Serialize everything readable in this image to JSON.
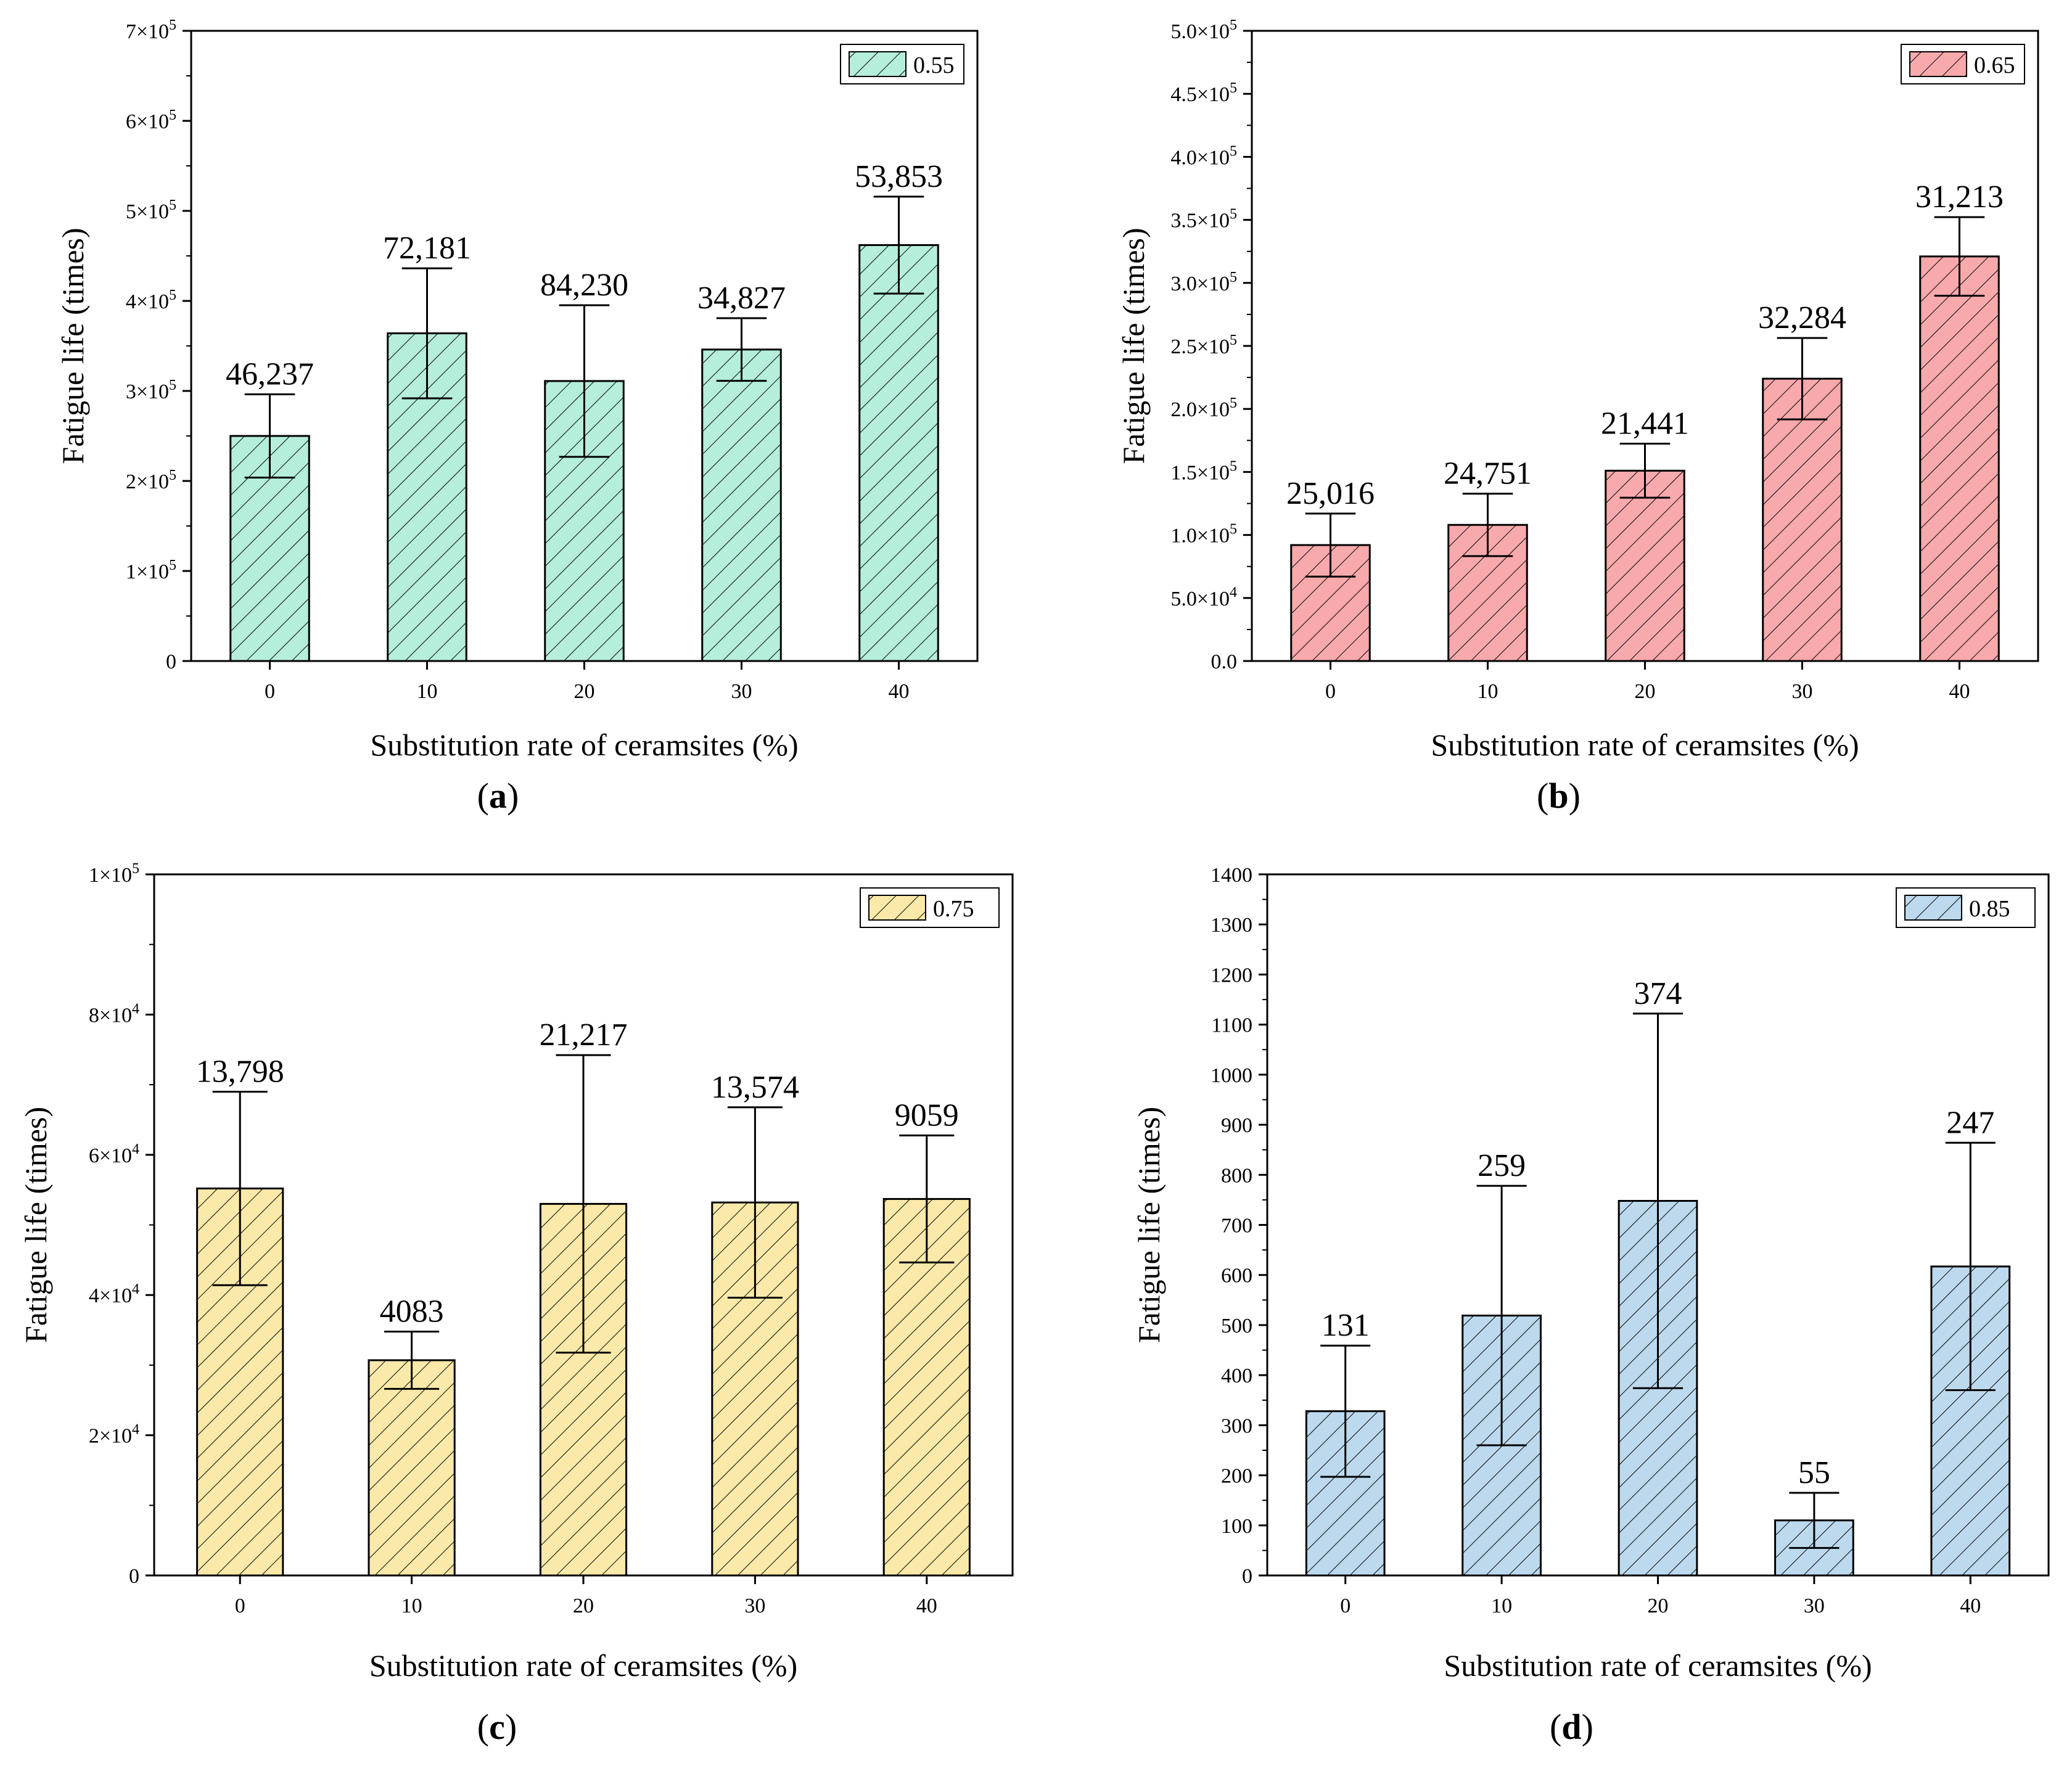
{
  "chart_data": [
    {
      "id": "a",
      "type": "bar",
      "caption": "(a)",
      "legend": "0.55",
      "color": "#b5eedb",
      "categories": [
        "0",
        "10",
        "20",
        "30",
        "40"
      ],
      "values": [
        250000,
        364000,
        311000,
        346000,
        462000
      ],
      "errors": [
        46237,
        72181,
        84230,
        34827,
        53853
      ],
      "error_labels": [
        "46,237",
        "72,181",
        "84,230",
        "34,827",
        "53,853"
      ],
      "xlabel": "Substitution rate of ceramsites (%)",
      "ylabel": "Fatigue life (times)",
      "ylim": [
        0,
        700000
      ],
      "y_ticks": [
        {
          "value": 0,
          "mant": "0",
          "exp": ""
        },
        {
          "value": 100000,
          "mant": "1×10",
          "exp": "5"
        },
        {
          "value": 200000,
          "mant": "2×10",
          "exp": "5"
        },
        {
          "value": 300000,
          "mant": "3×10",
          "exp": "5"
        },
        {
          "value": 400000,
          "mant": "4×10",
          "exp": "5"
        },
        {
          "value": 500000,
          "mant": "5×10",
          "exp": "5"
        },
        {
          "value": 600000,
          "mant": "6×10",
          "exp": "5"
        },
        {
          "value": 700000,
          "mant": "7×10",
          "exp": "5"
        }
      ]
    },
    {
      "id": "b",
      "type": "bar",
      "caption": "(b)",
      "legend": "0.65",
      "color": "#f7a9ab",
      "categories": [
        "0",
        "10",
        "20",
        "30",
        "40"
      ],
      "values": [
        92000,
        108000,
        151000,
        224000,
        321000
      ],
      "errors": [
        25016,
        24751,
        21441,
        32284,
        31213
      ],
      "error_labels": [
        "25,016",
        "24,751",
        "21,441",
        "32,284",
        "31,213"
      ],
      "xlabel": "Substitution rate of ceramsites (%)",
      "ylabel": "Fatigue life (times)",
      "ylim": [
        0,
        500000
      ],
      "y_ticks": [
        {
          "value": 0,
          "mant": "0.0",
          "exp": ""
        },
        {
          "value": 50000,
          "mant": "5.0×10",
          "exp": "4"
        },
        {
          "value": 100000,
          "mant": "1.0×10",
          "exp": "5"
        },
        {
          "value": 150000,
          "mant": "1.5×10",
          "exp": "5"
        },
        {
          "value": 200000,
          "mant": "2.0×10",
          "exp": "5"
        },
        {
          "value": 250000,
          "mant": "2.5×10",
          "exp": "5"
        },
        {
          "value": 300000,
          "mant": "3.0×10",
          "exp": "5"
        },
        {
          "value": 350000,
          "mant": "3.5×10",
          "exp": "5"
        },
        {
          "value": 400000,
          "mant": "4.0×10",
          "exp": "5"
        },
        {
          "value": 450000,
          "mant": "4.5×10",
          "exp": "5"
        },
        {
          "value": 500000,
          "mant": "5.0×10",
          "exp": "5"
        }
      ]
    },
    {
      "id": "c",
      "type": "bar",
      "caption": "(c)",
      "legend": "0.75",
      "color": "#fbe9a9",
      "categories": [
        "0",
        "10",
        "20",
        "30",
        "40"
      ],
      "values": [
        55200,
        30700,
        53000,
        53200,
        53700
      ],
      "errors": [
        13798,
        4083,
        21217,
        13574,
        9059
      ],
      "error_labels": [
        "13,798",
        "4083",
        "21,217",
        "13,574",
        "9059"
      ],
      "xlabel": "Substitution rate of ceramsites (%)",
      "ylabel": "Fatigue life (times)",
      "ylim": [
        0,
        100000
      ],
      "y_ticks": [
        {
          "value": 0,
          "mant": "0",
          "exp": ""
        },
        {
          "value": 20000,
          "mant": "2×10",
          "exp": "4"
        },
        {
          "value": 40000,
          "mant": "4×10",
          "exp": "4"
        },
        {
          "value": 60000,
          "mant": "6×10",
          "exp": "4"
        },
        {
          "value": 80000,
          "mant": "8×10",
          "exp": "4"
        },
        {
          "value": 100000,
          "mant": "1×10",
          "exp": "5"
        }
      ]
    },
    {
      "id": "d",
      "type": "bar",
      "caption": "(d)",
      "legend": "0.85",
      "color": "#bcd9ee",
      "categories": [
        "0",
        "10",
        "20",
        "30",
        "40"
      ],
      "values": [
        328,
        519,
        748,
        110,
        617
      ],
      "errors": [
        131,
        259,
        374,
        55,
        247
      ],
      "error_labels": [
        "131",
        "259",
        "374",
        "55",
        "247"
      ],
      "xlabel": "Substitution rate of ceramsites (%)",
      "ylabel": "Fatigue life (times)",
      "ylim": [
        0,
        1400
      ],
      "y_ticks": [
        {
          "value": 0,
          "mant": "0",
          "exp": ""
        },
        {
          "value": 100,
          "mant": "100",
          "exp": ""
        },
        {
          "value": 200,
          "mant": "200",
          "exp": ""
        },
        {
          "value": 300,
          "mant": "300",
          "exp": ""
        },
        {
          "value": 400,
          "mant": "400",
          "exp": ""
        },
        {
          "value": 500,
          "mant": "500",
          "exp": ""
        },
        {
          "value": 600,
          "mant": "600",
          "exp": ""
        },
        {
          "value": 700,
          "mant": "700",
          "exp": ""
        },
        {
          "value": 800,
          "mant": "800",
          "exp": ""
        },
        {
          "value": 900,
          "mant": "900",
          "exp": ""
        },
        {
          "value": 1000,
          "mant": "1000",
          "exp": ""
        },
        {
          "value": 1100,
          "mant": "1100",
          "exp": ""
        },
        {
          "value": 1200,
          "mant": "1200",
          "exp": ""
        },
        {
          "value": 1300,
          "mant": "1300",
          "exp": ""
        },
        {
          "value": 1400,
          "mant": "1400",
          "exp": ""
        }
      ]
    }
  ]
}
